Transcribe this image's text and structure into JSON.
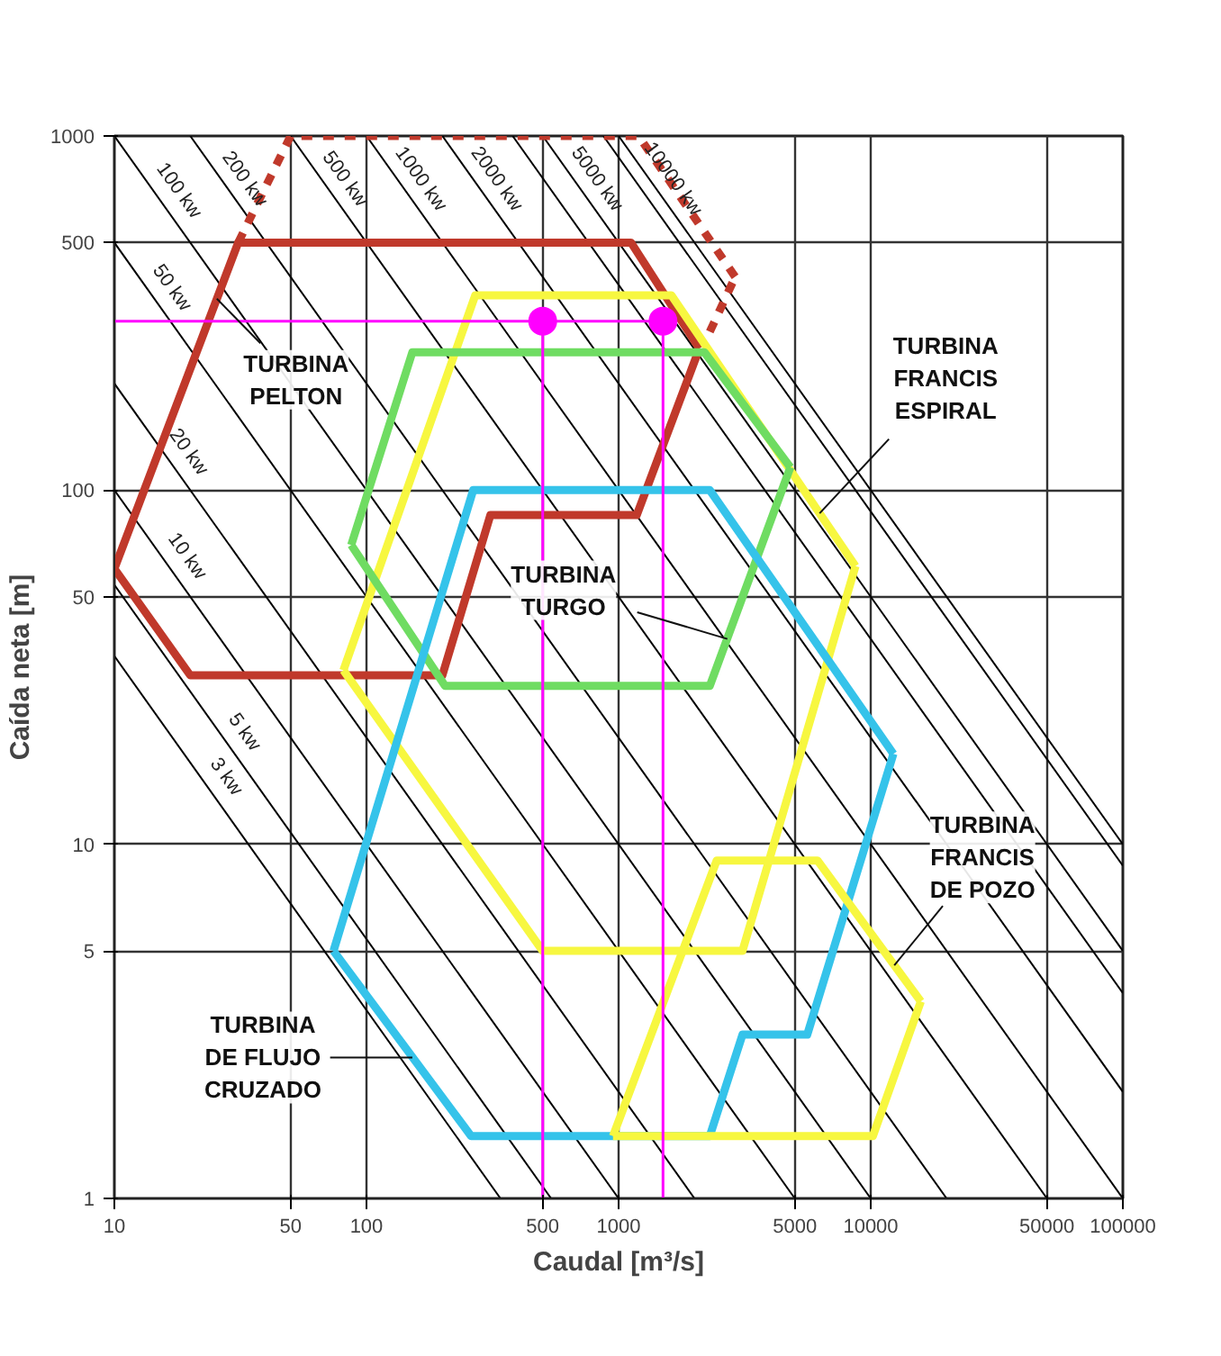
{
  "chart_data": {
    "type": "line",
    "xlabel": "Caudal [m³/s]",
    "ylabel": "Caída neta [m]",
    "log": "xy",
    "grid": true,
    "xlim": [
      10,
      100000
    ],
    "ylim": [
      1,
      1000
    ],
    "xticks": [
      10,
      50,
      100,
      500,
      1000,
      5000,
      10000,
      50000,
      100000
    ],
    "yticks": [
      1,
      5,
      10,
      50,
      100,
      500,
      1000
    ],
    "series": [
      {
        "color": "#000000",
        "x": [
          10,
          340
        ],
        "values": [
          34,
          1
        ]
      },
      {
        "color": "#000000",
        "x": [
          10,
          540
        ],
        "values": [
          54,
          1
        ]
      },
      {
        "color": "#000000",
        "x": [
          10,
          1000
        ],
        "values": [
          100,
          1
        ]
      },
      {
        "color": "#000000",
        "x": [
          10,
          2000
        ],
        "values": [
          200,
          1
        ]
      },
      {
        "color": "#000000",
        "x": [
          10,
          5000
        ],
        "values": [
          500,
          1
        ]
      },
      {
        "color": "#000000",
        "x": [
          10,
          10000
        ],
        "values": [
          1000,
          1
        ]
      },
      {
        "color": "#000000",
        "x": [
          20,
          20000
        ],
        "values": [
          1000,
          1
        ]
      },
      {
        "color": "#000000",
        "x": [
          50,
          50000
        ],
        "values": [
          1000,
          1
        ]
      },
      {
        "color": "#000000",
        "x": [
          100,
          100000
        ],
        "values": [
          1000,
          1
        ]
      },
      {
        "color": "#000000",
        "x": [
          200,
          100000
        ],
        "values": [
          1000,
          2
        ]
      },
      {
        "color": "#000000",
        "x": [
          380,
          100000
        ],
        "values": [
          1000,
          3.8
        ]
      },
      {
        "color": "#000000",
        "x": [
          500,
          100000
        ],
        "values": [
          1000,
          5
        ]
      },
      {
        "color": "#000000",
        "x": [
          870,
          100000
        ],
        "values": [
          1000,
          8.7
        ]
      },
      {
        "color": "#000000",
        "x": [
          1000,
          100000
        ],
        "values": [
          1000,
          10
        ]
      },
      {
        "color": "#c0392b",
        "x": [
          10,
          31,
          1120,
          2090
        ],
        "values": [
          60,
          500,
          500,
          251
        ]
      },
      {
        "color": "#c0392b",
        "x": [
          10,
          20,
          200,
          310,
          1180,
          2090
        ],
        "values": [
          60,
          30,
          30,
          85,
          85,
          251
        ]
      },
      {
        "color": "#c0392b",
        "line_style": "dashed",
        "x": [
          31,
          50,
          1200,
          2900
        ],
        "values": [
          500,
          1000,
          1000,
          400
        ]
      },
      {
        "color": "#c0392b",
        "line_style": "dashed",
        "x": [
          2300,
          2900
        ],
        "values": [
          280,
          400
        ]
      },
      {
        "color": "#f7f740",
        "x": [
          81,
          270,
          1620,
          8700
        ],
        "values": [
          31,
          355,
          355,
          61
        ]
      },
      {
        "color": "#f7f740",
        "x": [
          81,
          500,
          3100,
          8700
        ],
        "values": [
          31,
          5,
          5,
          61
        ]
      },
      {
        "color": "#6fdc62",
        "x": [
          87,
          152,
          2190,
          4800
        ],
        "values": [
          70,
          245,
          245,
          116
        ]
      },
      {
        "color": "#6fdc62",
        "x": [
          87,
          205,
          2300,
          4800
        ],
        "values": [
          70,
          28,
          28,
          116
        ]
      },
      {
        "color": "#35c3ea",
        "x": [
          74,
          265,
          2300,
          12300
        ],
        "values": [
          5,
          100,
          100,
          18
        ]
      },
      {
        "color": "#35c3ea",
        "x": [
          74,
          260,
          2300,
          3100,
          5600,
          12300
        ],
        "values": [
          5,
          1.5,
          1.5,
          2.9,
          2.9,
          18
        ]
      },
      {
        "color": "#f7f740",
        "x": [
          950,
          2450,
          6150,
          15800
        ],
        "values": [
          1.5,
          9,
          9,
          3.6
        ]
      },
      {
        "color": "#f7f740",
        "x": [
          950,
          10200,
          15800
        ],
        "values": [
          1.5,
          1.5,
          3.6
        ]
      },
      {
        "color": "#ff00ff",
        "x": [
          10,
          1500
        ],
        "values": [
          300,
          300
        ]
      },
      {
        "color": "#ff00ff",
        "x": [
          500,
          500
        ],
        "values": [
          1,
          300
        ]
      },
      {
        "color": "#ff00ff",
        "x": [
          1500,
          1500
        ],
        "values": [
          1,
          300
        ]
      },
      {
        "type": "scatter",
        "marker": "circle",
        "color": "#ff00ff",
        "x": [
          500,
          1500
        ],
        "values": [
          300,
          300
        ]
      }
    ],
    "annotations": [
      {
        "text": "3 kw",
        "x": 22,
        "y": 15.5
      },
      {
        "text": "5 kw",
        "x": 26,
        "y": 20.7
      },
      {
        "text": "10 kw",
        "x": 15.4,
        "y": 65
      },
      {
        "text": "20 kw",
        "x": 15.6,
        "y": 128
      },
      {
        "text": "50 kw",
        "x": 13.4,
        "y": 372
      },
      {
        "text": "100 kw",
        "x": 14.3,
        "y": 700
      },
      {
        "text": "200 kw",
        "x": 20,
        "y": 1000
      },
      {
        "text": "500 kw",
        "x": 50,
        "y": 1000
      },
      {
        "text": "1000 kw",
        "x": 100,
        "y": 1000
      },
      {
        "text": "2000 kw",
        "x": 200,
        "y": 1000
      },
      {
        "text": "5000 kw",
        "x": 500,
        "y": 1000
      },
      {
        "text": "10000 kw",
        "x": 1000,
        "y": 1000
      },
      {
        "text": "TURBINA\nPELTON",
        "x": 25.5,
        "y": 347
      },
      {
        "text": "TURBINA\nFRANCIS\nESPIRAL",
        "x": 6270,
        "y": 86
      },
      {
        "text": "TURBINA\nTURGO",
        "x": 2700,
        "y": 38
      },
      {
        "text": "TURBINA\nFRANCIS\nDE POZO",
        "x": 12400,
        "y": 4.55
      },
      {
        "text": "TURBINA\nDE FLUJO\nCRUZADO",
        "x": 152,
        "y": 2.5
      }
    ]
  }
}
